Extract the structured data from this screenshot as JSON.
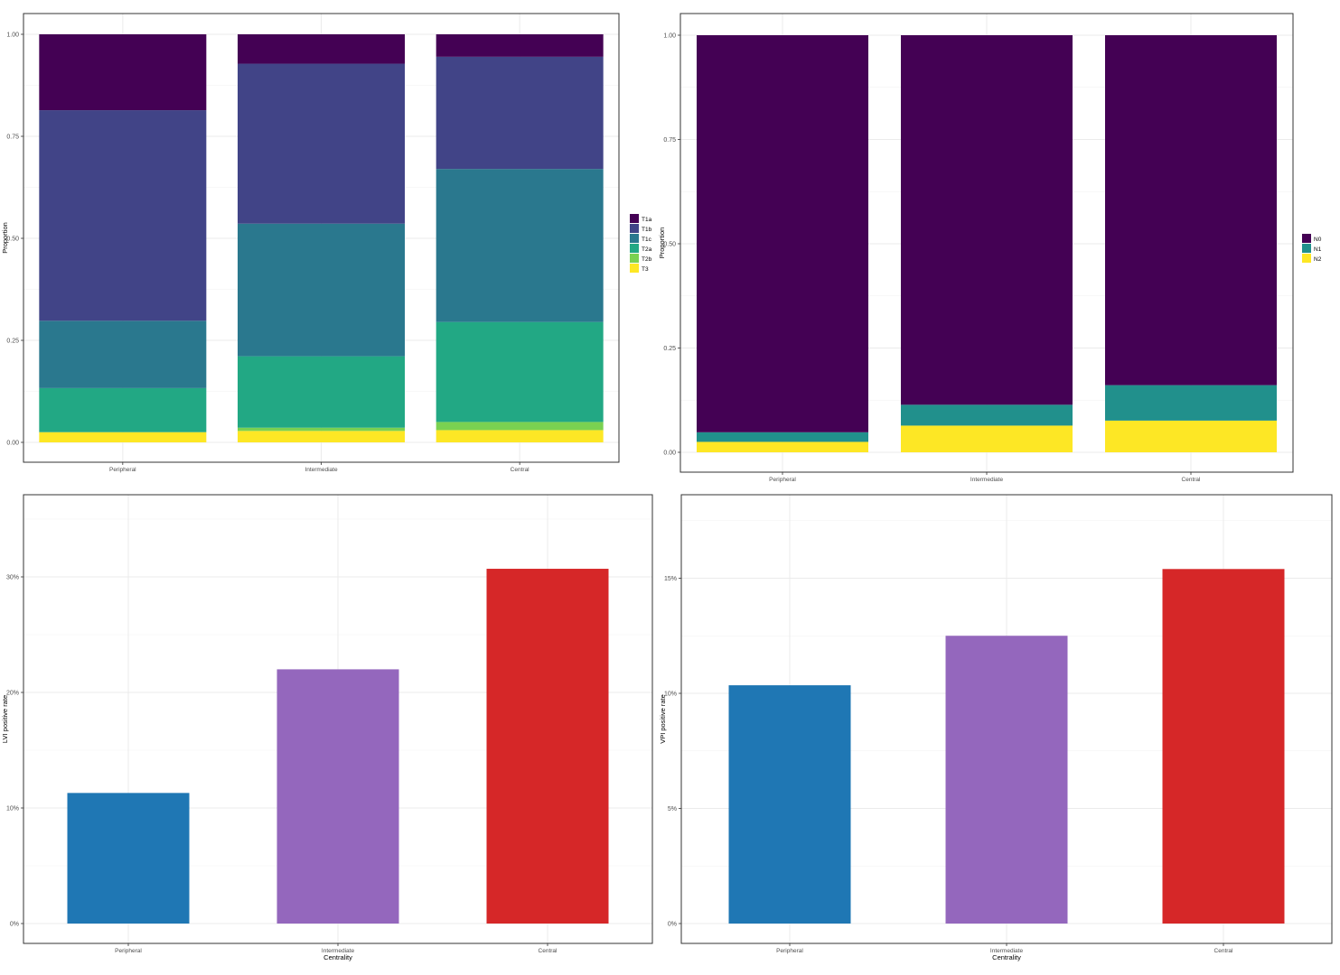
{
  "chart_data": [
    {
      "type": "bar",
      "stacked": true,
      "categories": [
        "Peripheral",
        "Intermediate",
        "Central"
      ],
      "xlabel": "",
      "ylabel": "Proportion",
      "ylim": [
        0,
        1
      ],
      "yticks": [
        "0.00",
        "0.25",
        "0.50",
        "0.75",
        "1.00"
      ],
      "grid": true,
      "legend_position": "right",
      "series": [
        {
          "name": "T1a",
          "color": "#440154",
          "values": [
            0.186,
            0.072,
            0.055
          ]
        },
        {
          "name": "T1b",
          "color": "#414487",
          "values": [
            0.516,
            0.392,
            0.275
          ]
        },
        {
          "name": "T1c",
          "color": "#2a788e",
          "values": [
            0.165,
            0.325,
            0.375
          ]
        },
        {
          "name": "T2a",
          "color": "#22a884",
          "values": [
            0.108,
            0.175,
            0.245
          ]
        },
        {
          "name": "T2b",
          "color": "#7ad151",
          "values": [
            0.0,
            0.008,
            0.02
          ]
        },
        {
          "name": "T3",
          "color": "#fde725",
          "values": [
            0.025,
            0.028,
            0.03
          ]
        }
      ]
    },
    {
      "type": "bar",
      "stacked": true,
      "categories": [
        "Peripheral",
        "Intermediate",
        "Central"
      ],
      "xlabel": "",
      "ylabel": "Proportion",
      "ylim": [
        0,
        1
      ],
      "yticks": [
        "0.00",
        "0.25",
        "0.50",
        "0.75",
        "1.00"
      ],
      "grid": true,
      "legend_position": "right",
      "series": [
        {
          "name": "N0",
          "color": "#440154",
          "values": [
            0.952,
            0.886,
            0.839
          ]
        },
        {
          "name": "N1",
          "color": "#21908c",
          "values": [
            0.023,
            0.05,
            0.085
          ]
        },
        {
          "name": "N2",
          "color": "#fde725",
          "values": [
            0.025,
            0.064,
            0.076
          ]
        }
      ]
    },
    {
      "type": "bar",
      "categories": [
        "Peripheral",
        "Intermediate",
        "Central"
      ],
      "values": [
        11.3,
        22.0,
        30.7
      ],
      "colors": [
        "#1f77b4",
        "#9467bd",
        "#d62728"
      ],
      "xlabel": "Centrality",
      "ylabel": "LVI positive rate",
      "ylim": [
        0,
        35
      ],
      "ytick_values": [
        0,
        10,
        20,
        30
      ],
      "yticks": [
        "0%",
        "10%",
        "20%",
        "30%"
      ],
      "grid": true
    },
    {
      "type": "bar",
      "categories": [
        "Peripheral",
        "Intermediate",
        "Central"
      ],
      "values": [
        10.35,
        12.5,
        15.4
      ],
      "colors": [
        "#1f77b4",
        "#9467bd",
        "#d62728"
      ],
      "xlabel": "Centrality",
      "ylabel": "VPI positive rate",
      "ylim": [
        0,
        17.5
      ],
      "ytick_values": [
        0,
        5,
        10,
        15
      ],
      "yticks": [
        "0%",
        "5%",
        "10%",
        "15%"
      ],
      "grid": true
    }
  ]
}
